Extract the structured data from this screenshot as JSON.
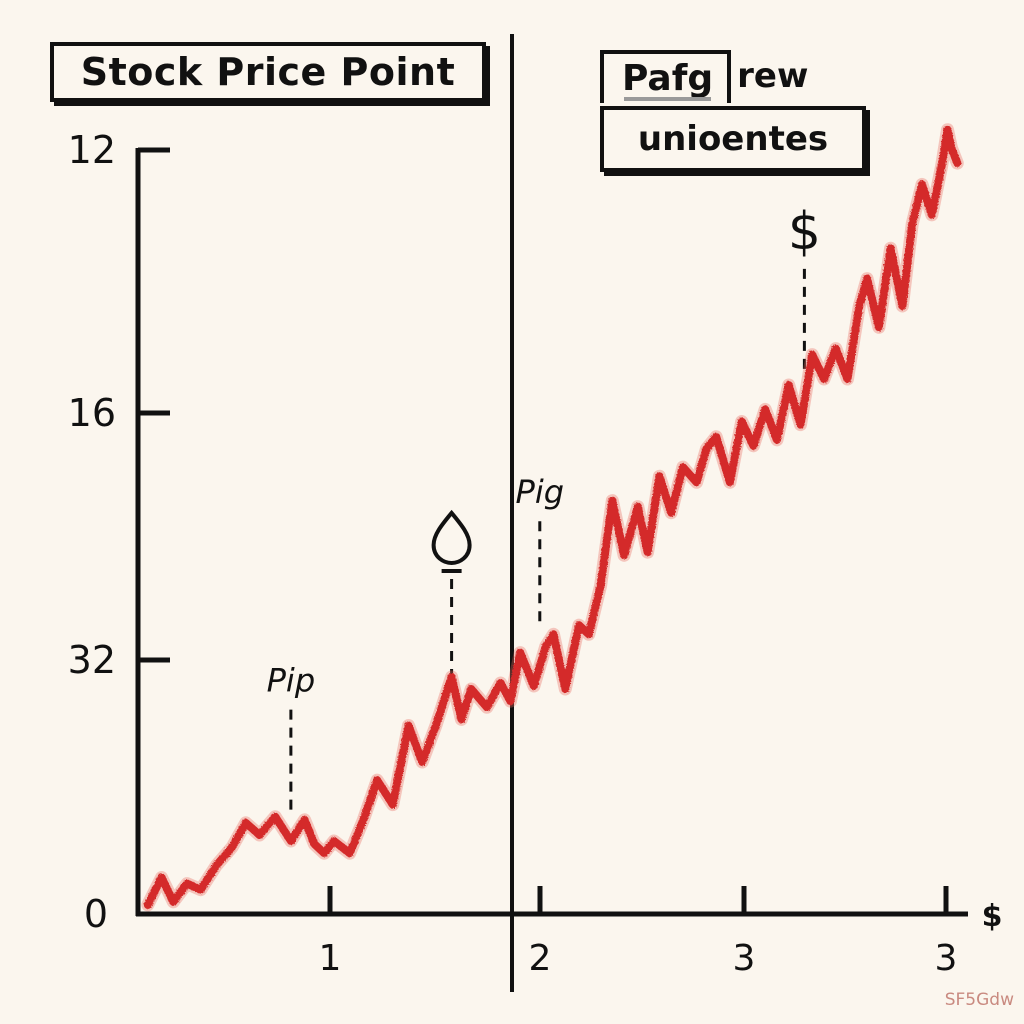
{
  "chart_data": {
    "type": "line",
    "title": "Stock Price Point",
    "legend": {
      "key_label": "Pafg",
      "key_label_rest": "rew",
      "second_line": "unioentes",
      "placement": "top-right"
    },
    "y_tick_labels": [
      "12",
      "16",
      "32",
      "0"
    ],
    "x_tick_labels": [
      "1",
      "2",
      "3",
      "3"
    ],
    "x_axis_end_label": "$",
    "series": [
      {
        "color": "#d42a2a",
        "x": [
          0.05,
          0.12,
          0.18,
          0.25,
          0.32,
          0.4,
          0.48,
          0.55,
          0.62,
          0.7,
          0.78,
          0.85,
          0.9,
          0.95,
          1.0,
          1.08,
          1.15,
          1.22,
          1.3,
          1.38,
          1.45,
          1.52,
          1.6,
          1.65,
          1.7,
          1.78,
          1.85,
          1.9,
          1.95,
          2.02,
          2.08,
          2.12,
          2.18,
          2.25,
          2.3,
          2.36,
          2.42,
          2.48,
          2.55,
          2.6,
          2.66,
          2.72,
          2.78,
          2.85,
          2.9,
          2.95,
          3.02,
          3.08,
          3.14,
          3.2,
          3.26,
          3.32,
          3.38,
          3.44,
          3.5,
          3.56,
          3.62,
          3.68,
          3.72,
          3.78,
          3.84,
          3.9,
          3.95,
          4.0,
          4.05,
          4.1,
          4.13,
          4.15,
          4.18
        ],
        "y": [
          0.3,
          1.2,
          0.4,
          1.0,
          0.8,
          1.6,
          2.2,
          3.0,
          2.6,
          3.2,
          2.4,
          3.1,
          2.3,
          2.0,
          2.4,
          2.0,
          3.1,
          4.4,
          3.6,
          6.2,
          5.0,
          6.2,
          7.8,
          6.4,
          7.4,
          6.8,
          7.6,
          7.0,
          8.6,
          7.5,
          8.8,
          9.2,
          7.4,
          9.5,
          9.2,
          10.8,
          13.6,
          11.8,
          13.4,
          11.9,
          14.4,
          13.2,
          14.7,
          14.2,
          15.3,
          15.7,
          14.2,
          16.2,
          15.4,
          16.6,
          15.6,
          17.4,
          16.1,
          18.4,
          17.6,
          18.6,
          17.6,
          20.0,
          20.9,
          19.3,
          21.9,
          20.0,
          22.7,
          24.0,
          23.0,
          24.6,
          25.8,
          25.2,
          24.7
        ]
      }
    ],
    "annotations": [
      {
        "label": "Pip",
        "x": 0.78,
        "y": 3.3
      },
      {
        "label": "Pig",
        "x": 2.05,
        "y": 9.5
      },
      {
        "label": "$",
        "x": 3.4,
        "y": 17.8
      },
      {
        "label": "",
        "icon": "drop-pin-icon",
        "x": 1.6,
        "y": 7.6
      }
    ],
    "vertical_line_x": 1.9,
    "grid": false
  },
  "watermark": "SF5Gdw"
}
